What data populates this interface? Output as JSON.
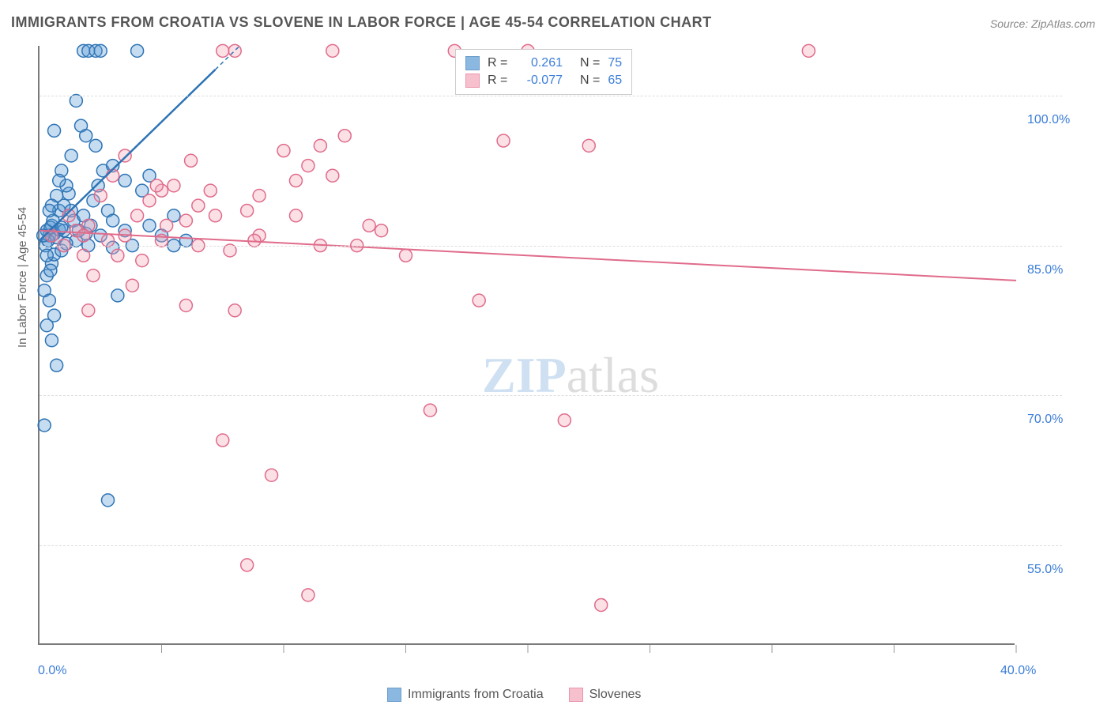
{
  "title": "IMMIGRANTS FROM CROATIA VS SLOVENE IN LABOR FORCE | AGE 45-54 CORRELATION CHART",
  "source": "Source: ZipAtlas.com",
  "ylabel": "In Labor Force | Age 45-54",
  "watermark_zip": "ZIP",
  "watermark_atlas": "atlas",
  "chart": {
    "type": "scatter",
    "xlim": [
      0,
      40
    ],
    "ylim": [
      45,
      105
    ],
    "xticks": [
      0,
      5,
      10,
      15,
      20,
      25,
      30,
      35,
      40
    ],
    "xtick_labels": [
      "0.0%",
      "",
      "",
      "",
      "",
      "",
      "",
      "",
      "40.0%"
    ],
    "yticks": [
      55,
      70,
      85,
      100
    ],
    "ytick_labels": [
      "55.0%",
      "70.0%",
      "85.0%",
      "100.0%"
    ],
    "background_color": "#ffffff",
    "grid_color": "#dddddd",
    "axis_color": "#7a7a7a",
    "marker_radius": 8,
    "marker_fill_opacity": 0.35,
    "marker_stroke_width": 1.5,
    "trend_line_width": 2,
    "trend_line_width_thin": 1.5,
    "series": [
      {
        "name": "Immigrants from Croatia",
        "color": "#5b9bd5",
        "stroke": "#2e74b5",
        "R": "0.261",
        "N": "75",
        "trend": {
          "x1": 0,
          "y1": 85.5,
          "x2": 8.2,
          "y2": 105,
          "dash_after_x": 7.2
        },
        "points": [
          [
            0.3,
            86.5
          ],
          [
            0.4,
            86.0
          ],
          [
            0.5,
            87.0
          ],
          [
            0.6,
            86.2
          ],
          [
            0.7,
            85.8
          ],
          [
            0.8,
            86.6
          ],
          [
            0.2,
            80.5
          ],
          [
            0.3,
            82.0
          ],
          [
            0.5,
            83.2
          ],
          [
            0.6,
            84.1
          ],
          [
            0.8,
            88.5
          ],
          [
            1.0,
            89.0
          ],
          [
            1.2,
            90.2
          ],
          [
            1.1,
            91.0
          ],
          [
            0.9,
            92.5
          ],
          [
            0.4,
            79.5
          ],
          [
            0.6,
            78.0
          ],
          [
            0.3,
            77.0
          ],
          [
            0.5,
            75.5
          ],
          [
            0.7,
            73.0
          ],
          [
            1.8,
            104.5
          ],
          [
            2.0,
            104.5
          ],
          [
            2.3,
            104.5
          ],
          [
            2.5,
            104.5
          ],
          [
            1.5,
            99.5
          ],
          [
            1.7,
            97.0
          ],
          [
            0.9,
            84.5
          ],
          [
            1.9,
            86.2
          ],
          [
            2.1,
            87.0
          ],
          [
            2.4,
            91.0
          ],
          [
            2.6,
            92.5
          ],
          [
            2.8,
            88.5
          ],
          [
            3.0,
            84.8
          ],
          [
            3.2,
            80.0
          ],
          [
            3.5,
            86.5
          ],
          [
            3.8,
            85.0
          ],
          [
            4.0,
            104.5
          ],
          [
            4.2,
            90.5
          ],
          [
            4.5,
            92.0
          ],
          [
            5.0,
            86.0
          ],
          [
            5.5,
            88.0
          ],
          [
            6.0,
            85.5
          ],
          [
            0.2,
            67.0
          ],
          [
            2.8,
            59.5
          ],
          [
            0.6,
            96.5
          ],
          [
            1.3,
            94.0
          ],
          [
            1.5,
            85.5
          ],
          [
            0.25,
            85.0
          ],
          [
            0.35,
            85.5
          ],
          [
            0.45,
            86.8
          ],
          [
            0.55,
            87.5
          ],
          [
            0.15,
            86.0
          ],
          [
            0.7,
            90.0
          ],
          [
            0.8,
            91.5
          ],
          [
            0.5,
            89.0
          ],
          [
            1.0,
            86.5
          ],
          [
            1.4,
            87.5
          ],
          [
            2.0,
            85.0
          ],
          [
            2.5,
            86.0
          ],
          [
            3.0,
            87.5
          ],
          [
            1.8,
            88.0
          ],
          [
            1.6,
            86.5
          ],
          [
            0.4,
            88.5
          ],
          [
            0.3,
            84.0
          ],
          [
            0.9,
            86.8
          ],
          [
            1.1,
            85.2
          ],
          [
            1.3,
            88.5
          ],
          [
            2.2,
            89.5
          ],
          [
            3.5,
            91.5
          ],
          [
            4.5,
            87.0
          ],
          [
            5.5,
            85.0
          ],
          [
            3.0,
            93.0
          ],
          [
            2.3,
            95.0
          ],
          [
            1.9,
            96.0
          ],
          [
            0.45,
            82.5
          ]
        ]
      },
      {
        "name": "Slovenes",
        "color": "#f4a6b8",
        "stroke": "#e06b8b",
        "R": "-0.077",
        "N": "65",
        "trend": {
          "x1": 0,
          "y1": 86.5,
          "x2": 40,
          "y2": 81.5,
          "dash_after_x": null
        },
        "points": [
          [
            0.5,
            86.0
          ],
          [
            1.0,
            85.0
          ],
          [
            1.5,
            86.5
          ],
          [
            2.0,
            87.0
          ],
          [
            2.8,
            85.5
          ],
          [
            3.5,
            86.0
          ],
          [
            4.0,
            88.0
          ],
          [
            4.5,
            89.5
          ],
          [
            5.0,
            90.5
          ],
          [
            5.5,
            91.0
          ],
          [
            6.0,
            87.5
          ],
          [
            6.5,
            89.0
          ],
          [
            7.0,
            90.5
          ],
          [
            7.5,
            104.5
          ],
          [
            8.0,
            104.5
          ],
          [
            8.5,
            88.5
          ],
          [
            9.0,
            86.0
          ],
          [
            10.0,
            94.5
          ],
          [
            10.5,
            88.0
          ],
          [
            11.0,
            93.0
          ],
          [
            11.5,
            95.0
          ],
          [
            12.0,
            104.5
          ],
          [
            12.5,
            96.0
          ],
          [
            13.0,
            85.0
          ],
          [
            14.0,
            86.5
          ],
          [
            15.0,
            84.0
          ],
          [
            16.0,
            68.5
          ],
          [
            17.0,
            104.5
          ],
          [
            18.0,
            79.5
          ],
          [
            19.0,
            95.5
          ],
          [
            20.0,
            104.5
          ],
          [
            21.5,
            67.5
          ],
          [
            22.5,
            95.0
          ],
          [
            31.5,
            104.5
          ],
          [
            6.0,
            79.0
          ],
          [
            7.5,
            65.5
          ],
          [
            8.0,
            78.5
          ],
          [
            8.5,
            53.0
          ],
          [
            9.5,
            62.0
          ],
          [
            11.0,
            50.0
          ],
          [
            12.0,
            92.0
          ],
          [
            23.0,
            49.0
          ],
          [
            3.0,
            92.0
          ],
          [
            3.5,
            94.0
          ],
          [
            5.0,
            85.5
          ],
          [
            2.5,
            90.0
          ],
          [
            1.8,
            84.0
          ],
          [
            2.2,
            82.0
          ],
          [
            6.2,
            93.5
          ],
          [
            7.8,
            84.5
          ],
          [
            4.2,
            83.5
          ],
          [
            3.8,
            81.0
          ],
          [
            5.2,
            87.0
          ],
          [
            9.0,
            90.0
          ],
          [
            10.5,
            91.5
          ],
          [
            13.5,
            87.0
          ],
          [
            2.0,
            78.5
          ],
          [
            1.2,
            88.0
          ],
          [
            1.8,
            86.0
          ],
          [
            3.2,
            84.0
          ],
          [
            4.8,
            91.0
          ],
          [
            6.5,
            85.0
          ],
          [
            7.2,
            88.0
          ],
          [
            8.8,
            85.5
          ],
          [
            11.5,
            85.0
          ]
        ]
      }
    ]
  },
  "legend_top": {
    "r_equals": "R =",
    "n_equals": "N ="
  },
  "legend_bottom": {
    "label1": "Immigrants from Croatia",
    "label2": "Slovenes"
  }
}
